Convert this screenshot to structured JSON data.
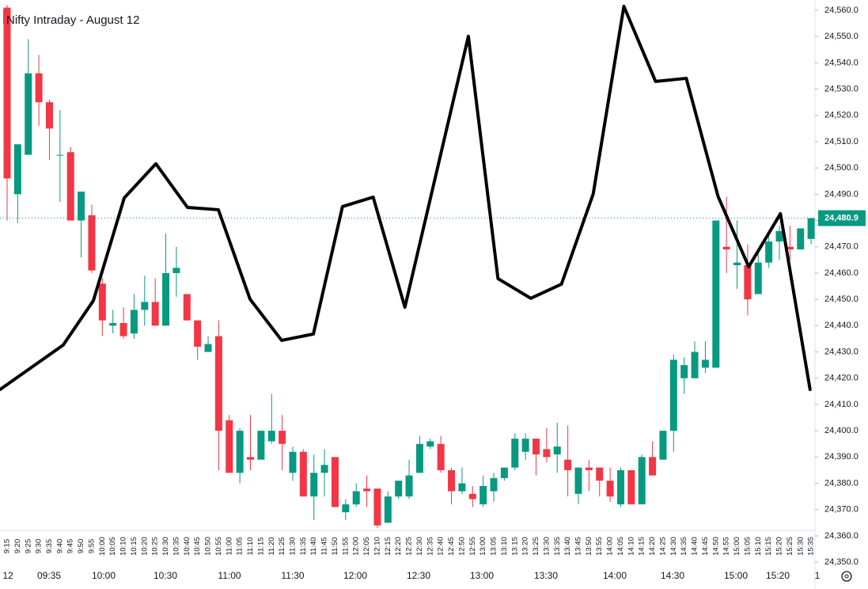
{
  "chart_data": {
    "type": "candlestick",
    "title": "Nifty Intraday - August 12",
    "categories": [
      "9:15",
      "9:20",
      "9:25",
      "9:30",
      "9:35",
      "9:40",
      "9:45",
      "9:50",
      "9:55",
      "10:00",
      "10:05",
      "10:10",
      "10:15",
      "10:20",
      "10:25",
      "10:30",
      "10:35",
      "10:40",
      "10:45",
      "10:50",
      "10:55",
      "11:00",
      "11:05",
      "11:10",
      "11:15",
      "11:20",
      "11:25",
      "11:30",
      "11:35",
      "11:40",
      "11:45",
      "11:50",
      "11:55",
      "12:00",
      "12:05",
      "12:10",
      "12:15",
      "12:20",
      "12:25",
      "12:30",
      "12:35",
      "12:40",
      "12:45",
      "12:50",
      "12:55",
      "13:00",
      "13:05",
      "13:10",
      "13:15",
      "13:20",
      "13:25",
      "13:30",
      "13:35",
      "13:40",
      "13:45",
      "13:50",
      "13:55",
      "14:00",
      "14:05",
      "14:10",
      "14:15",
      "14:20",
      "14:25",
      "14:30",
      "14:35",
      "14:40",
      "14:45",
      "14:50",
      "14:55",
      "15:00",
      "15:05",
      "15:10",
      "15:15",
      "15:20",
      "15:25",
      "15:30",
      "15:35"
    ],
    "time_labels": [
      "12",
      "09:35",
      "10:00",
      "10:30",
      "11:00",
      "11:30",
      "12:00",
      "12:30",
      "13:00",
      "13:30",
      "14:00",
      "14:30",
      "15:00",
      "15:20",
      "1"
    ],
    "open": [
      24561,
      24490,
      24505,
      24536,
      24525,
      24505,
      24506,
      24480,
      24482,
      24456,
      24440,
      24441,
      24437,
      24446,
      24449,
      24440,
      24460,
      24452,
      24442,
      24430,
      24436,
      24404,
      24384,
      24390,
      24389,
      24396,
      24400,
      24384,
      24392,
      24375,
      24384,
      24390,
      24369,
      24372,
      24378,
      24378,
      24365,
      24375,
      24375,
      24384,
      24394,
      24395,
      24385,
      24377,
      24376,
      24372,
      24377,
      24382,
      24386,
      24392,
      24397,
      24393,
      24391,
      24389,
      24376,
      24386,
      24386,
      24381,
      24372,
      24385,
      24372,
      24390,
      24389,
      24400,
      24420,
      24420,
      24424,
      24424,
      24470,
      24463,
      24463,
      24452,
      24464,
      24472,
      24470,
      24469,
      24473
    ],
    "high": [
      24562,
      24509,
      24549,
      24543,
      24526,
      24522,
      24508,
      24491,
      24486,
      24458,
      24446,
      24447,
      24452,
      24459,
      24458,
      24475,
      24470,
      24452,
      24442,
      24436,
      24442,
      24406,
      24401,
      24406,
      24400,
      24414,
      24406,
      24394,
      24393,
      24391,
      24393,
      24390,
      24374,
      24380,
      24383,
      24378,
      24377,
      24381,
      24389,
      24398,
      24397,
      24398,
      24386,
      24386,
      24379,
      24383,
      24384,
      24386,
      24399,
      24399,
      24397,
      24401,
      24403,
      24402,
      24386,
      24389,
      24386,
      24386,
      24386,
      24385,
      24391,
      24396,
      24400,
      24429,
      24428,
      24434,
      24434,
      24480,
      24489,
      24480,
      24471,
      24469,
      24474,
      24478,
      24478,
      24477,
      24481
    ],
    "low": [
      24480,
      24479,
      24505,
      24516,
      24503,
      24487,
      24480,
      24466,
      24460,
      24436,
      24437,
      24435,
      24435,
      24440,
      24440,
      24440,
      24451,
      24442,
      24427,
      24430,
      24385,
      24384,
      24380,
      24385,
      24389,
      24395,
      24385,
      24381,
      24375,
      24366,
      24375,
      24371,
      24366,
      24371,
      24371,
      24363,
      24365,
      24374,
      24374,
      24384,
      24393,
      24384,
      24372,
      24376,
      24371,
      24371,
      24373,
      24381,
      24385,
      24389,
      24383,
      24388,
      24384,
      24375,
      24372,
      24377,
      24375,
      24373,
      24371,
      24372,
      24372,
      24383,
      24389,
      24392,
      24414,
      24420,
      24422,
      24424,
      24460,
      24454,
      24444,
      24452,
      24462,
      24465,
      24465,
      24469,
      24471
    ],
    "close": [
      24496,
      24509,
      24536,
      24525,
      24515,
      24505,
      24480,
      24491,
      24461,
      24442,
      24441,
      24436,
      24446,
      24449,
      24440,
      24460,
      24462,
      24442,
      24432,
      24433,
      24400,
      24384,
      24400,
      24389,
      24400,
      24400,
      24395,
      24392,
      24375,
      24384,
      24387,
      24371,
      24372,
      24377,
      24377,
      24364,
      24375,
      24381,
      24383,
      24395,
      24396,
      24385,
      24377,
      24380,
      24374,
      24379,
      24382,
      24386,
      24397,
      24397,
      24391,
      24390,
      24394,
      24385,
      24386,
      24385,
      24381,
      24375,
      24385,
      24372,
      24390,
      24383,
      24400,
      24427,
      24425,
      24430,
      24427,
      24480,
      24469,
      24464,
      24450,
      24464,
      24472,
      24476,
      24469,
      24477,
      24480.9
    ],
    "up_color": "#089981",
    "down_color": "#f23645",
    "drawing": {
      "color": "#000000",
      "x": [
        -0.67,
        5.3,
        8.15,
        11.07,
        14.06,
        17.05,
        19.97,
        22.96,
        25.95,
        28.95,
        31.7,
        34.6,
        37.6,
        43.6,
        46.4,
        49.5,
        52.4,
        55.4,
        58.3,
        61.3,
        64.2,
        67.2,
        70.1,
        73.1,
        75.9
      ],
      "values": [
        24415.7,
        24432.6,
        24449.5,
        24488.6,
        24501.6,
        24485.0,
        24484.1,
        24450.1,
        24434.4,
        24436.8,
        24485.3,
        24488.9,
        24447.0,
        24550.1,
        24457.9,
        24450.4,
        24455.8,
        24490.1,
        24561.5,
        24532.9,
        24534.1,
        24489.2,
        24462.4,
        24482.6,
        24415.7
      ]
    },
    "last_price": {
      "value": 24480.9,
      "label": "24,480.9"
    },
    "ylim": [
      24339.8,
      24563.9
    ],
    "yticks": [
      {
        "value": 24350,
        "label": "24,350.0"
      },
      {
        "value": 24360,
        "label": "24,360.0"
      },
      {
        "value": 24370,
        "label": "24,370.0"
      },
      {
        "value": 24380,
        "label": "24,380.0"
      },
      {
        "value": 24390,
        "label": "24,390.0"
      },
      {
        "value": 24400,
        "label": "24,400.0"
      },
      {
        "value": 24410,
        "label": "24,410.0"
      },
      {
        "value": 24420,
        "label": "24,420.0"
      },
      {
        "value": 24430,
        "label": "24,430.0"
      },
      {
        "value": 24440,
        "label": "24,440.0"
      },
      {
        "value": 24450,
        "label": "24,450.0"
      },
      {
        "value": 24460,
        "label": "24,460.0"
      },
      {
        "value": 24470,
        "label": "24,470.0"
      },
      {
        "value": 24480,
        "label": "24,480.0"
      },
      {
        "value": 24490,
        "label": "24,490.0"
      },
      {
        "value": 24500,
        "label": "24,500.0"
      },
      {
        "value": 24510,
        "label": "24,510.0"
      },
      {
        "value": 24520,
        "label": "24,520.0"
      },
      {
        "value": 24530,
        "label": "24,530.0"
      },
      {
        "value": 24540,
        "label": "24,540.0"
      },
      {
        "value": 24550,
        "label": "24,550.0"
      },
      {
        "value": 24560,
        "label": "24,560.0"
      }
    ]
  }
}
